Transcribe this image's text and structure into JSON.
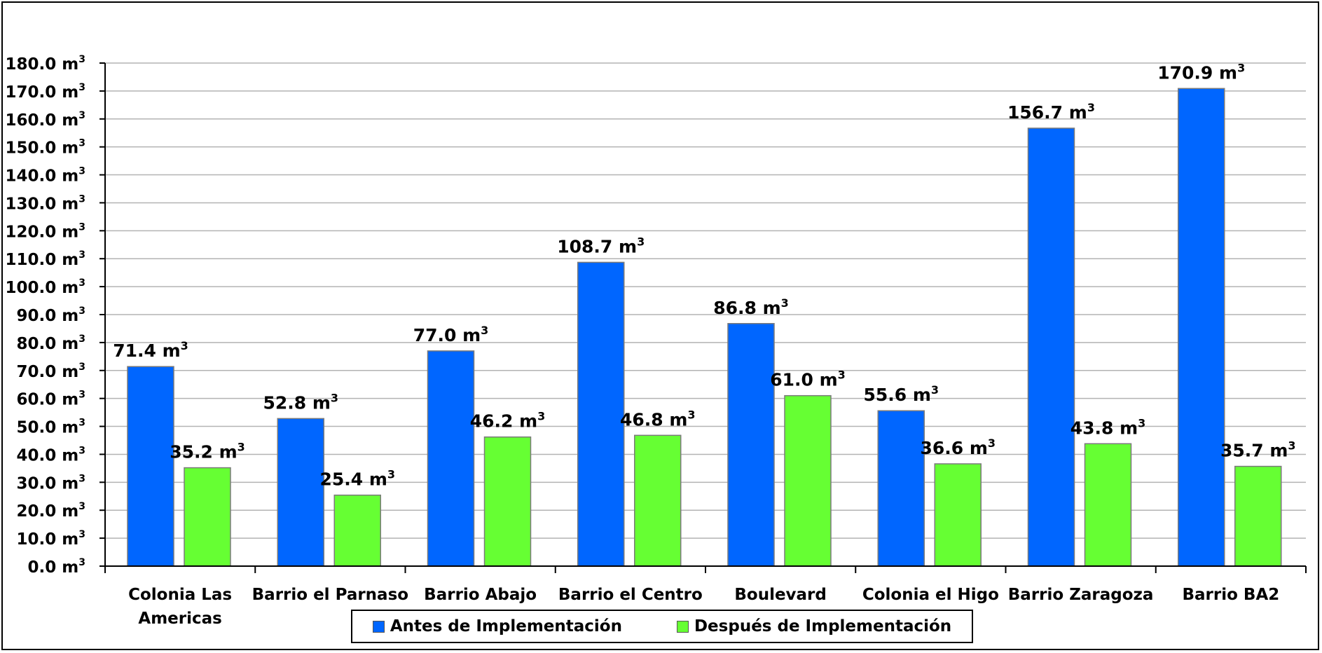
{
  "chart_data": {
    "type": "bar",
    "categories": [
      "Colonia Las Americas",
      "Barrio el Parnaso",
      "Barrio Abajo",
      "Barrio el Centro",
      "Boulevard",
      "Colonia el Higo",
      "Barrio Zaragoza",
      "Barrio BA2"
    ],
    "category_lines": [
      [
        "Colonia Las",
        "Americas"
      ],
      [
        "Barrio el Parnaso"
      ],
      [
        "Barrio Abajo"
      ],
      [
        "Barrio el Centro"
      ],
      [
        "Boulevard"
      ],
      [
        "Colonia el Higo"
      ],
      [
        "Barrio Zaragoza"
      ],
      [
        "Barrio BA2"
      ]
    ],
    "series": [
      {
        "name": "Antes de Implementación",
        "color": "#0066ff",
        "values": [
          71.4,
          52.8,
          77.0,
          108.7,
          86.8,
          55.6,
          156.7,
          170.9
        ]
      },
      {
        "name": "Después de Implementación",
        "color": "#66ff33",
        "values": [
          35.2,
          25.4,
          46.2,
          46.8,
          61.0,
          36.6,
          43.8,
          35.7
        ]
      }
    ],
    "unit": "m",
    "unit_superscript": "3",
    "ylim": [
      0,
      180
    ],
    "ytick_step": 10,
    "grid": true,
    "legend_position": "bottom",
    "title": "",
    "xlabel": "",
    "ylabel": ""
  }
}
